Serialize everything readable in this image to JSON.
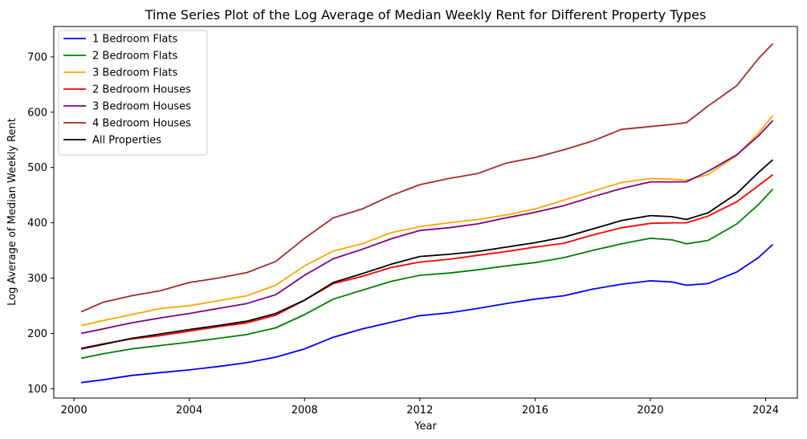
{
  "chart_data": {
    "type": "line",
    "title": "Time Series Plot of the Log Average of Median Weekly Rent for Different Property Types",
    "xlabel": "Year",
    "ylabel": "Log Average of Median Weekly Rent",
    "xlim": [
      1999.3,
      2025.1
    ],
    "ylim": [
      83,
      755
    ],
    "xticks": [
      2000,
      2004,
      2008,
      2012,
      2016,
      2020,
      2024
    ],
    "xtick_labels": [
      "2000",
      "2004",
      "2008",
      "2012",
      "2016",
      "2020",
      "2024"
    ],
    "yticks": [
      100,
      200,
      300,
      400,
      500,
      600,
      700
    ],
    "ytick_labels": [
      "100",
      "200",
      "300",
      "400",
      "500",
      "600",
      "700"
    ],
    "grid": false,
    "legend_position": "upper-left",
    "x": [
      2000.25,
      2001,
      2002,
      2003,
      2004,
      2005,
      2006,
      2007,
      2008,
      2009,
      2010,
      2011,
      2012,
      2013,
      2014,
      2015,
      2016,
      2017,
      2018,
      2019,
      2020,
      2020.75,
      2021.25,
      2022,
      2023,
      2023.75,
      2024.25
    ],
    "series": [
      {
        "name": "1 Bedroom Flats",
        "color": "#0000ff",
        "values": [
          111,
          116,
          124,
          129,
          134,
          140,
          147,
          157,
          172,
          193,
          208,
          220,
          232,
          237,
          245,
          254,
          262,
          268,
          280,
          289,
          295,
          293,
          287,
          290,
          311,
          337,
          361
        ]
      },
      {
        "name": "2 Bedroom Flats",
        "color": "#008000",
        "values": [
          155,
          163,
          172,
          178,
          184,
          191,
          198,
          210,
          234,
          262,
          278,
          294,
          305,
          309,
          315,
          322,
          328,
          337,
          350,
          362,
          372,
          369,
          362,
          368,
          398,
          433,
          461
        ]
      },
      {
        "name": "3 Bedroom Flats",
        "color": "#ffa500",
        "values": [
          214,
          223,
          234,
          245,
          250,
          259,
          268,
          287,
          322,
          349,
          362,
          382,
          393,
          400,
          406,
          414,
          425,
          441,
          457,
          473,
          480,
          479,
          477,
          487,
          522,
          562,
          594
        ]
      },
      {
        "name": "2 Bedroom Houses",
        "color": "#ff0000",
        "values": [
          173,
          181,
          190,
          196,
          204,
          212,
          219,
          233,
          260,
          290,
          303,
          319,
          329,
          334,
          341,
          348,
          356,
          363,
          378,
          391,
          399,
          400,
          400,
          412,
          438,
          467,
          487
        ]
      },
      {
        "name": "3 Bedroom Houses",
        "color": "#800080",
        "values": [
          200,
          208,
          219,
          228,
          236,
          245,
          254,
          270,
          305,
          335,
          352,
          371,
          386,
          391,
          398,
          409,
          419,
          431,
          447,
          462,
          474,
          474,
          474,
          493,
          523,
          557,
          585
        ]
      },
      {
        "name": "4 Bedroom Houses",
        "color": "#a52a2a",
        "values": [
          239,
          256,
          268,
          277,
          292,
          300,
          310,
          330,
          372,
          409,
          425,
          449,
          469,
          480,
          489,
          508,
          518,
          532,
          548,
          569,
          574,
          578,
          581,
          611,
          648,
          697,
          724
        ]
      },
      {
        "name": "All Properties",
        "color": "#000000",
        "values": [
          172,
          180,
          191,
          199,
          207,
          214,
          222,
          236,
          260,
          292,
          308,
          325,
          339,
          343,
          348,
          356,
          364,
          374,
          389,
          404,
          413,
          411,
          406,
          418,
          453,
          491,
          514
        ]
      }
    ]
  }
}
